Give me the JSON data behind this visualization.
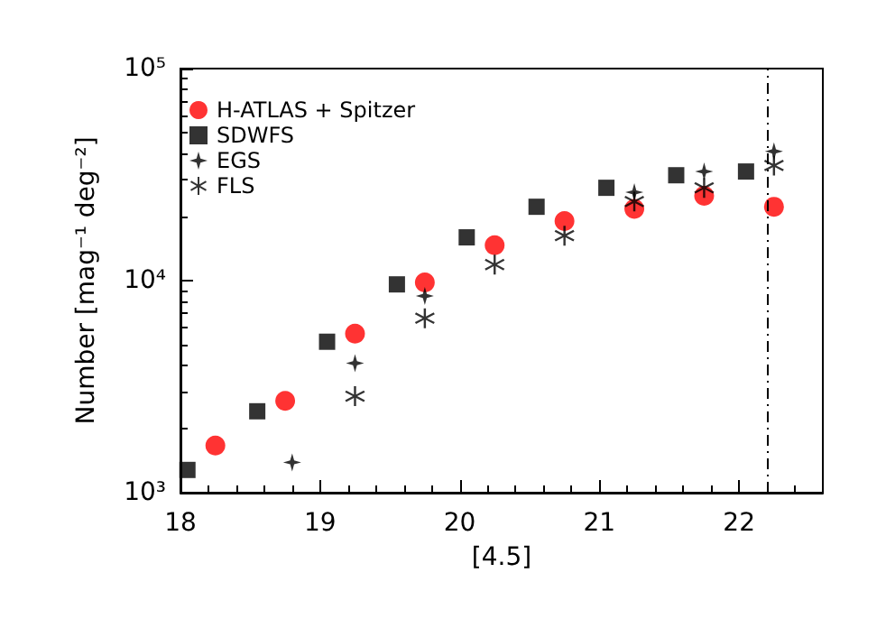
{
  "chart_data": {
    "type": "scatter",
    "xlabel": "[4.5]",
    "ylabel": "Number [mag⁻¹ deg⁻²]",
    "xlim": [
      18,
      22.6
    ],
    "xticks": [
      18,
      19,
      20,
      21,
      22
    ],
    "ylim": [
      1000,
      100000
    ],
    "yticks": [
      {
        "value": 1000,
        "label": "10³"
      },
      {
        "value": 10000,
        "label": "10⁴"
      },
      {
        "value": 100000,
        "label": "10⁵"
      }
    ],
    "log": "y",
    "grid": false,
    "legend": "top left",
    "series": [
      {
        "name": "H-ATLAS + Spitzer",
        "color": "#ff0000",
        "marker": "circle",
        "x": [
          18.25,
          18.75,
          19.25,
          19.75,
          20.25,
          20.75,
          21.25,
          21.75,
          22.25
        ],
        "values": [
          1670,
          2710,
          5620,
          9800,
          14700,
          19100,
          21800,
          25100,
          22300
        ]
      },
      {
        "name": "SDWFS",
        "color": "#000000",
        "marker": "square",
        "x": [
          18.05,
          18.55,
          19.05,
          19.55,
          20.05,
          20.55,
          21.05,
          21.55,
          22.05
        ],
        "values": [
          1280,
          2420,
          5150,
          9600,
          16000,
          22300,
          27400,
          31400,
          32700
        ]
      },
      {
        "name": "EGS",
        "color": "#000000",
        "marker": "star",
        "x": [
          18.8,
          19.25,
          19.75,
          21.25,
          21.75,
          22.25
        ],
        "values": [
          1390,
          4080,
          8460,
          26100,
          32700,
          40700
        ]
      },
      {
        "name": "FLS",
        "color": "#000000",
        "marker": "cross",
        "x": [
          19.25,
          19.75,
          20.25,
          20.75,
          21.25,
          21.75,
          22.25
        ],
        "values": [
          2850,
          6650,
          11900,
          16300,
          23600,
          27400,
          34900
        ]
      }
    ],
    "ref_lines": [
      {
        "axis": "x",
        "value": 22.2,
        "color": "#000000",
        "line_style": "dashed"
      }
    ]
  }
}
